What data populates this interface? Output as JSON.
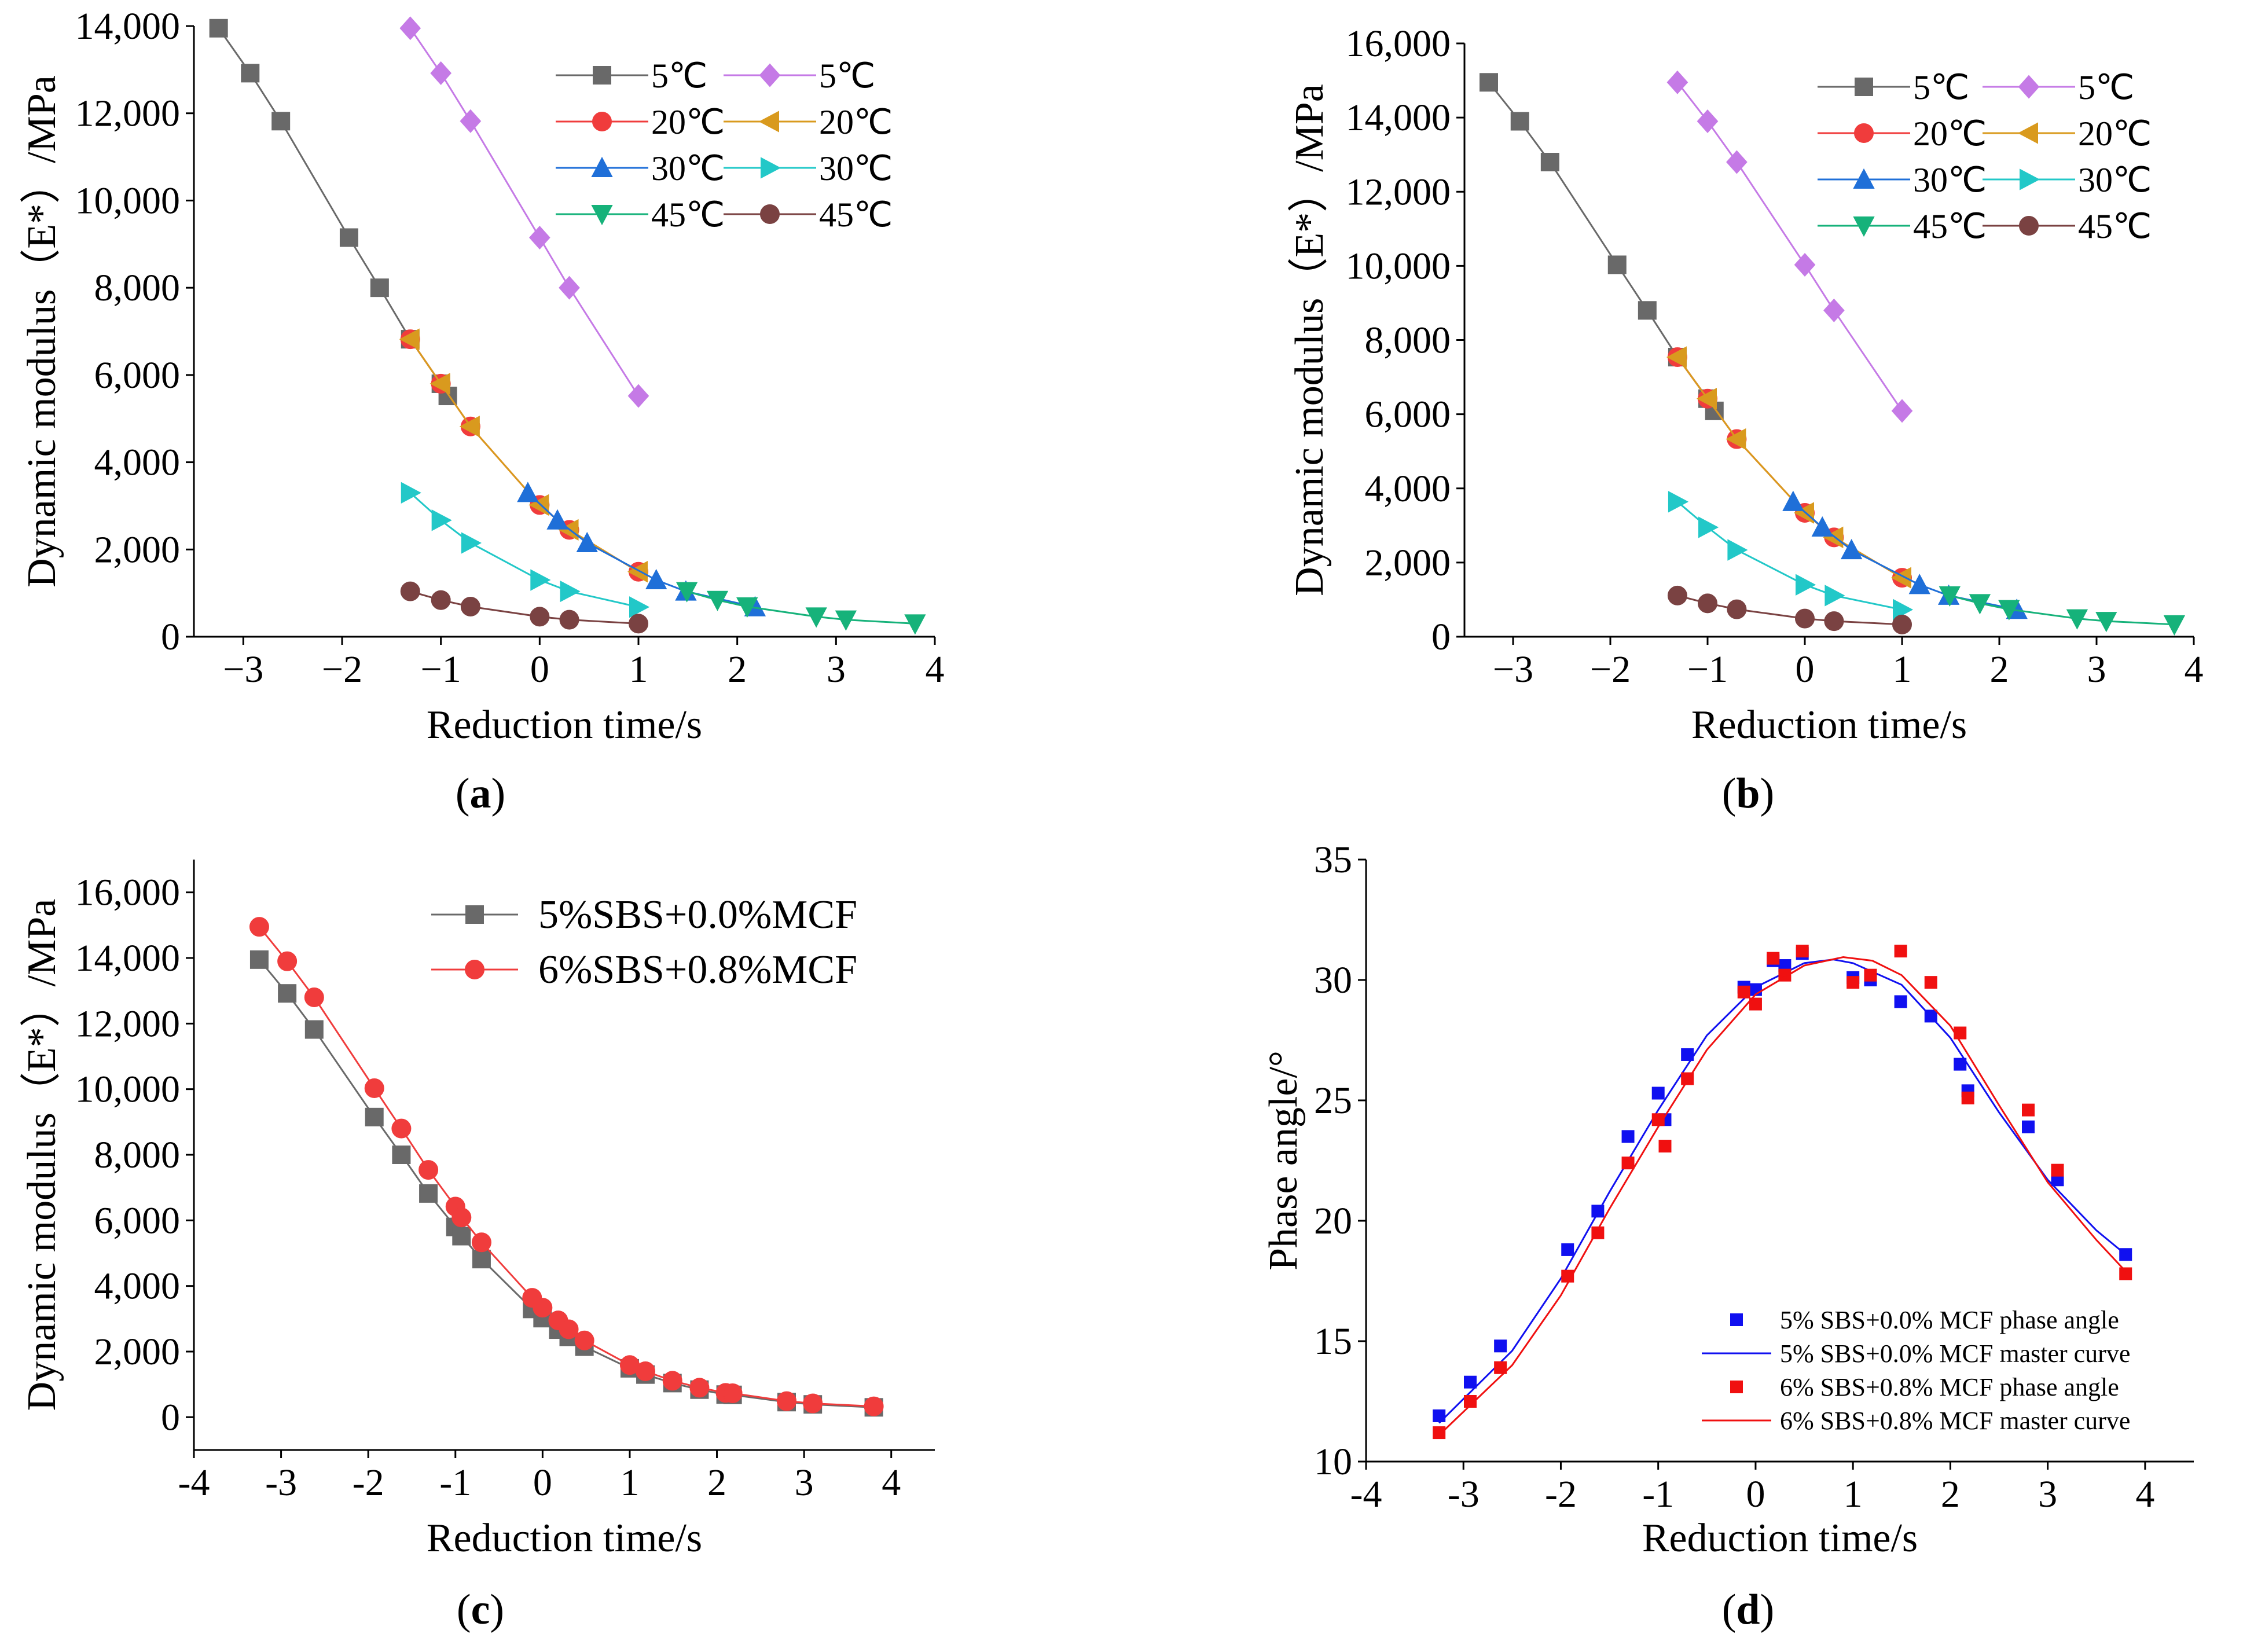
{
  "colors": {
    "5C": "#696969",
    "5C_b": "#c57ae6",
    "20C": "#f03c3c",
    "20C_b": "#d99a1e",
    "30C": "#1f6fd8",
    "30C_b": "#22c8c8",
    "45C": "#16b27a",
    "45C_b": "#7a4242",
    "ref": "#696969",
    "mcf": "#f03c3c",
    "blue": "#1010f0",
    "red": "#f01010"
  },
  "chart_data": [
    {
      "type": "line",
      "caption_letter": "a",
      "xlabel": "Reduction time/s",
      "ylabel": "Dynamic modulus（E*）/MPa",
      "xlim": [
        -3.5,
        4
      ],
      "ylim": [
        0,
        14000
      ],
      "xticks": [
        "−3",
        "−2",
        "−1",
        "0",
        "1",
        "2",
        "3",
        "4"
      ],
      "yticks": [
        "0",
        "2,000",
        "4,000",
        "6,000",
        "8,000",
        "10,000",
        "12,000",
        "14,000"
      ],
      "legend": "top-right",
      "series": [
        {
          "name": "5℃",
          "color_key": "5C",
          "marker": "square",
          "x": [
            -3.25,
            -2.93,
            -2.62,
            -1.93,
            -1.62,
            -1.31,
            -1.0,
            -0.93
          ],
          "y": [
            13950,
            12920,
            11820,
            9150,
            8000,
            6820,
            5800,
            5520
          ]
        },
        {
          "name": "5℃",
          "color_key": "5C_b",
          "marker": "diamond",
          "x": [
            -1.31,
            -1.0,
            -0.7,
            0.0,
            0.3,
            1.0
          ],
          "y": [
            13950,
            12920,
            11820,
            9150,
            8000,
            5520
          ]
        },
        {
          "name": "20℃",
          "color_key": "20C",
          "marker": "circle",
          "x": [
            -1.31,
            -1.0,
            -0.7,
            0.0,
            0.3,
            1.0
          ],
          "y": [
            6820,
            5800,
            4820,
            3020,
            2450,
            1490
          ]
        },
        {
          "name": "20℃",
          "color_key": "20C_b",
          "marker": "tri-left",
          "x": [
            -1.31,
            -1.0,
            -0.7,
            0.0,
            0.3,
            1.0
          ],
          "y": [
            6820,
            5800,
            4820,
            3020,
            2450,
            1490
          ]
        },
        {
          "name": "30℃",
          "color_key": "30C",
          "marker": "tri-up",
          "x": [
            -0.12,
            0.18,
            0.48,
            1.18,
            1.48,
            2.18
          ],
          "y": [
            3300,
            2670,
            2150,
            1300,
            1040,
            680
          ]
        },
        {
          "name": "30℃",
          "color_key": "30C_b",
          "marker": "tri-right",
          "x": [
            -1.31,
            -1.0,
            -0.7,
            0.0,
            0.3,
            1.0
          ],
          "y": [
            3300,
            2670,
            2150,
            1300,
            1040,
            680
          ]
        },
        {
          "name": "45℃",
          "color_key": "45C",
          "marker": "tri-down",
          "x": [
            1.49,
            1.8,
            2.1,
            2.8,
            3.1,
            3.8
          ],
          "y": [
            1040,
            840,
            690,
            460,
            390,
            300
          ]
        },
        {
          "name": "45℃",
          "color_key": "45C_b",
          "marker": "circle",
          "x": [
            -1.31,
            -1.0,
            -0.7,
            0.0,
            0.3,
            1.0
          ],
          "y": [
            1040,
            840,
            690,
            460,
            390,
            300
          ]
        }
      ]
    },
    {
      "type": "line",
      "caption_letter": "b",
      "xlabel": "Reduction time/s",
      "ylabel": "Dynamic modulus（E*）/MPa",
      "xlim": [
        -3.5,
        4
      ],
      "ylim": [
        0,
        16000
      ],
      "xticks": [
        "−3",
        "−2",
        "−1",
        "0",
        "1",
        "2",
        "3",
        "4"
      ],
      "yticks": [
        "0",
        "2,000",
        "4,000",
        "6,000",
        "8,000",
        "10,000",
        "12,000",
        "14,000",
        "16,000"
      ],
      "legend": "top-right",
      "series": [
        {
          "name": "5℃",
          "color_key": "5C",
          "marker": "square",
          "x": [
            -3.25,
            -2.93,
            -2.62,
            -1.93,
            -1.62,
            -1.31,
            -1.0,
            -0.93
          ],
          "y": [
            14950,
            13900,
            12800,
            10030,
            8800,
            7540,
            6420,
            6090
          ]
        },
        {
          "name": "5℃",
          "color_key": "5C_b",
          "marker": "diamond",
          "x": [
            -1.31,
            -1.0,
            -0.7,
            0.0,
            0.3,
            1.0
          ],
          "y": [
            14950,
            13900,
            12800,
            10030,
            8800,
            6090
          ]
        },
        {
          "name": "20℃",
          "color_key": "20C",
          "marker": "circle",
          "x": [
            -1.31,
            -1.0,
            -0.7,
            0.0,
            0.3,
            1.0
          ],
          "y": [
            7540,
            6420,
            5330,
            3340,
            2680,
            1590
          ]
        },
        {
          "name": "20℃",
          "color_key": "20C_b",
          "marker": "tri-left",
          "x": [
            -1.31,
            -1.0,
            -0.7,
            0.0,
            0.3,
            1.0
          ],
          "y": [
            7540,
            6420,
            5330,
            3340,
            2680,
            1590
          ]
        },
        {
          "name": "30℃",
          "color_key": "30C",
          "marker": "tri-up",
          "x": [
            -0.12,
            0.18,
            0.48,
            1.18,
            1.48,
            2.18
          ],
          "y": [
            3640,
            2950,
            2340,
            1400,
            1110,
            730
          ]
        },
        {
          "name": "30℃",
          "color_key": "30C_b",
          "marker": "tri-right",
          "x": [
            -1.31,
            -1.0,
            -0.7,
            0.0,
            0.3,
            1.0
          ],
          "y": [
            3640,
            2950,
            2340,
            1400,
            1110,
            730
          ]
        },
        {
          "name": "45℃",
          "color_key": "45C",
          "marker": "tri-down",
          "x": [
            1.49,
            1.8,
            2.1,
            2.8,
            3.1,
            3.8
          ],
          "y": [
            1110,
            900,
            740,
            490,
            420,
            330
          ]
        },
        {
          "name": "45℃",
          "color_key": "45C_b",
          "marker": "circle",
          "x": [
            -1.31,
            -1.0,
            -0.7,
            0.0,
            0.3,
            1.0
          ],
          "y": [
            1110,
            900,
            740,
            490,
            420,
            330
          ]
        }
      ]
    },
    {
      "type": "line",
      "caption_letter": "c",
      "xlabel": "Reduction time/s",
      "ylabel": "Dynamic modulus（E*）/MPa",
      "xlim": [
        -4,
        4.5
      ],
      "ylim": [
        -1000,
        17000
      ],
      "xticks": [
        "-4",
        "-3",
        "-2",
        "-1",
        "0",
        "1",
        "2",
        "3",
        "4"
      ],
      "yticks": [
        "0",
        "2,000",
        "4,000",
        "6,000",
        "8,000",
        "10,000",
        "12,000",
        "14,000",
        "16,000"
      ],
      "legend": "top-right",
      "series": [
        {
          "name": "5%SBS+0.0%MCF",
          "color_key": "ref",
          "marker": "square",
          "x": [
            -3.25,
            -2.93,
            -2.62,
            -1.93,
            -1.62,
            -1.31,
            -1.0,
            -0.93,
            -0.7,
            -0.12,
            0.0,
            0.18,
            0.3,
            0.48,
            1.0,
            1.18,
            1.49,
            1.8,
            2.1,
            2.18,
            2.8,
            3.1,
            3.8
          ],
          "y": [
            13950,
            12920,
            11820,
            9150,
            8000,
            6820,
            5800,
            5520,
            4820,
            3300,
            3020,
            2670,
            2450,
            2150,
            1490,
            1300,
            1040,
            840,
            690,
            680,
            460,
            390,
            300
          ]
        },
        {
          "name": "6%SBS+0.8%MCF",
          "color_key": "mcf",
          "marker": "circle",
          "x": [
            -3.25,
            -2.93,
            -2.62,
            -1.93,
            -1.62,
            -1.31,
            -1.0,
            -0.93,
            -0.7,
            -0.12,
            0.0,
            0.18,
            0.3,
            0.48,
            1.0,
            1.18,
            1.49,
            1.8,
            2.1,
            2.18,
            2.8,
            3.1,
            3.8
          ],
          "y": [
            14950,
            13900,
            12800,
            10030,
            8800,
            7540,
            6420,
            6090,
            5330,
            3640,
            3340,
            2950,
            2680,
            2340,
            1590,
            1400,
            1110,
            900,
            740,
            730,
            490,
            420,
            330
          ]
        }
      ]
    },
    {
      "type": "scatter",
      "caption_letter": "d",
      "xlabel": "Reduction time/s",
      "ylabel": "Phase angle/°",
      "xlim": [
        -4,
        4.5
      ],
      "ylim": [
        10,
        35
      ],
      "xticks": [
        "-4",
        "-3",
        "-2",
        "-1",
        "0",
        "1",
        "2",
        "3",
        "4"
      ],
      "yticks": [
        "10",
        "15",
        "20",
        "25",
        "30",
        "35"
      ],
      "legend": "bottom-right",
      "series": [
        {
          "name": "5% SBS+0.0% MCF phase angle",
          "color_key": "blue",
          "kind": "points",
          "x": [
            -3.25,
            -2.93,
            -2.62,
            -1.93,
            -1.62,
            -1.31,
            -1.0,
            -0.93,
            -0.7,
            -0.12,
            0.0,
            0.18,
            0.3,
            0.48,
            1.0,
            1.18,
            1.49,
            1.8,
            2.1,
            2.18,
            2.8,
            3.1,
            3.8
          ],
          "y": [
            11.9,
            13.3,
            14.8,
            18.8,
            20.4,
            23.5,
            25.3,
            24.2,
            26.9,
            29.7,
            29.6,
            30.8,
            30.6,
            31.1,
            30.1,
            30.0,
            29.1,
            28.5,
            26.5,
            25.4,
            23.9,
            21.7,
            18.6
          ]
        },
        {
          "name": "5% SBS+0.0% MCF master curve",
          "color_key": "blue",
          "kind": "curve",
          "x": [
            -3.25,
            -2.5,
            -2.0,
            -1.5,
            -1.0,
            -0.5,
            0.0,
            0.5,
            0.8,
            1.0,
            1.5,
            2.0,
            2.5,
            3.0,
            3.5,
            3.8
          ],
          "y": [
            11.6,
            14.6,
            17.6,
            21.2,
            24.6,
            27.7,
            29.7,
            30.7,
            30.85,
            30.7,
            29.8,
            27.6,
            24.5,
            21.7,
            19.6,
            18.6
          ]
        },
        {
          "name": "6% SBS+0.8% MCF phase angle",
          "color_key": "red",
          "kind": "points",
          "x": [
            -3.25,
            -2.93,
            -2.62,
            -1.93,
            -1.62,
            -1.31,
            -1.0,
            -0.93,
            -0.7,
            -0.12,
            0.0,
            0.18,
            0.3,
            0.48,
            1.0,
            1.18,
            1.49,
            1.8,
            2.1,
            2.18,
            2.8,
            3.1,
            3.8
          ],
          "y": [
            11.2,
            12.5,
            13.9,
            17.7,
            19.5,
            22.4,
            24.2,
            23.1,
            25.9,
            29.5,
            29.0,
            30.9,
            30.2,
            31.2,
            29.9,
            30.2,
            31.2,
            29.9,
            27.8,
            25.1,
            24.6,
            22.1,
            17.8
          ]
        },
        {
          "name": "6% SBS+0.8% MCF master curve",
          "color_key": "red",
          "kind": "curve",
          "x": [
            -3.25,
            -2.5,
            -2.0,
            -1.5,
            -1.0,
            -0.5,
            0.0,
            0.5,
            0.9,
            1.2,
            1.5,
            2.0,
            2.5,
            3.0,
            3.5,
            3.8
          ],
          "y": [
            11.1,
            14.0,
            16.9,
            20.5,
            23.9,
            27.1,
            29.4,
            30.6,
            30.95,
            30.8,
            30.2,
            28.1,
            24.8,
            21.6,
            19.2,
            17.9
          ]
        }
      ]
    }
  ]
}
